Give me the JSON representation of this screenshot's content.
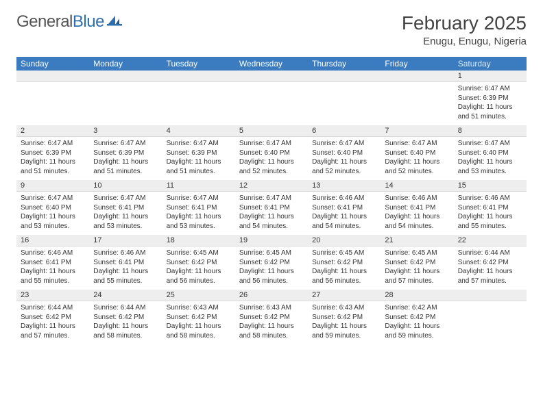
{
  "logo": {
    "text1": "General",
    "text2": "Blue"
  },
  "title": "February 2025",
  "location": "Enugu, Enugu, Nigeria",
  "style": {
    "header_bg": "#3b7bbf",
    "header_fg": "#ffffff",
    "daynum_bg": "#eeeeee",
    "page_bg": "#ffffff",
    "text_color": "#333333",
    "title_color": "#444444",
    "font_family": "Arial",
    "month_title_fontsize": 28,
    "location_fontsize": 15,
    "dayhead_fontsize": 12,
    "daynum_fontsize": 11,
    "cell_fontsize": 10
  },
  "day_names": [
    "Sunday",
    "Monday",
    "Tuesday",
    "Wednesday",
    "Thursday",
    "Friday",
    "Saturday"
  ],
  "weeks": [
    [
      null,
      null,
      null,
      null,
      null,
      null,
      {
        "n": "1",
        "sunrise": "Sunrise: 6:47 AM",
        "sunset": "Sunset: 6:39 PM",
        "daylight": "Daylight: 11 hours and 51 minutes."
      }
    ],
    [
      {
        "n": "2",
        "sunrise": "Sunrise: 6:47 AM",
        "sunset": "Sunset: 6:39 PM",
        "daylight": "Daylight: 11 hours and 51 minutes."
      },
      {
        "n": "3",
        "sunrise": "Sunrise: 6:47 AM",
        "sunset": "Sunset: 6:39 PM",
        "daylight": "Daylight: 11 hours and 51 minutes."
      },
      {
        "n": "4",
        "sunrise": "Sunrise: 6:47 AM",
        "sunset": "Sunset: 6:39 PM",
        "daylight": "Daylight: 11 hours and 51 minutes."
      },
      {
        "n": "5",
        "sunrise": "Sunrise: 6:47 AM",
        "sunset": "Sunset: 6:40 PM",
        "daylight": "Daylight: 11 hours and 52 minutes."
      },
      {
        "n": "6",
        "sunrise": "Sunrise: 6:47 AM",
        "sunset": "Sunset: 6:40 PM",
        "daylight": "Daylight: 11 hours and 52 minutes."
      },
      {
        "n": "7",
        "sunrise": "Sunrise: 6:47 AM",
        "sunset": "Sunset: 6:40 PM",
        "daylight": "Daylight: 11 hours and 52 minutes."
      },
      {
        "n": "8",
        "sunrise": "Sunrise: 6:47 AM",
        "sunset": "Sunset: 6:40 PM",
        "daylight": "Daylight: 11 hours and 53 minutes."
      }
    ],
    [
      {
        "n": "9",
        "sunrise": "Sunrise: 6:47 AM",
        "sunset": "Sunset: 6:40 PM",
        "daylight": "Daylight: 11 hours and 53 minutes."
      },
      {
        "n": "10",
        "sunrise": "Sunrise: 6:47 AM",
        "sunset": "Sunset: 6:41 PM",
        "daylight": "Daylight: 11 hours and 53 minutes."
      },
      {
        "n": "11",
        "sunrise": "Sunrise: 6:47 AM",
        "sunset": "Sunset: 6:41 PM",
        "daylight": "Daylight: 11 hours and 53 minutes."
      },
      {
        "n": "12",
        "sunrise": "Sunrise: 6:47 AM",
        "sunset": "Sunset: 6:41 PM",
        "daylight": "Daylight: 11 hours and 54 minutes."
      },
      {
        "n": "13",
        "sunrise": "Sunrise: 6:46 AM",
        "sunset": "Sunset: 6:41 PM",
        "daylight": "Daylight: 11 hours and 54 minutes."
      },
      {
        "n": "14",
        "sunrise": "Sunrise: 6:46 AM",
        "sunset": "Sunset: 6:41 PM",
        "daylight": "Daylight: 11 hours and 54 minutes."
      },
      {
        "n": "15",
        "sunrise": "Sunrise: 6:46 AM",
        "sunset": "Sunset: 6:41 PM",
        "daylight": "Daylight: 11 hours and 55 minutes."
      }
    ],
    [
      {
        "n": "16",
        "sunrise": "Sunrise: 6:46 AM",
        "sunset": "Sunset: 6:41 PM",
        "daylight": "Daylight: 11 hours and 55 minutes."
      },
      {
        "n": "17",
        "sunrise": "Sunrise: 6:46 AM",
        "sunset": "Sunset: 6:41 PM",
        "daylight": "Daylight: 11 hours and 55 minutes."
      },
      {
        "n": "18",
        "sunrise": "Sunrise: 6:45 AM",
        "sunset": "Sunset: 6:42 PM",
        "daylight": "Daylight: 11 hours and 56 minutes."
      },
      {
        "n": "19",
        "sunrise": "Sunrise: 6:45 AM",
        "sunset": "Sunset: 6:42 PM",
        "daylight": "Daylight: 11 hours and 56 minutes."
      },
      {
        "n": "20",
        "sunrise": "Sunrise: 6:45 AM",
        "sunset": "Sunset: 6:42 PM",
        "daylight": "Daylight: 11 hours and 56 minutes."
      },
      {
        "n": "21",
        "sunrise": "Sunrise: 6:45 AM",
        "sunset": "Sunset: 6:42 PM",
        "daylight": "Daylight: 11 hours and 57 minutes."
      },
      {
        "n": "22",
        "sunrise": "Sunrise: 6:44 AM",
        "sunset": "Sunset: 6:42 PM",
        "daylight": "Daylight: 11 hours and 57 minutes."
      }
    ],
    [
      {
        "n": "23",
        "sunrise": "Sunrise: 6:44 AM",
        "sunset": "Sunset: 6:42 PM",
        "daylight": "Daylight: 11 hours and 57 minutes."
      },
      {
        "n": "24",
        "sunrise": "Sunrise: 6:44 AM",
        "sunset": "Sunset: 6:42 PM",
        "daylight": "Daylight: 11 hours and 58 minutes."
      },
      {
        "n": "25",
        "sunrise": "Sunrise: 6:43 AM",
        "sunset": "Sunset: 6:42 PM",
        "daylight": "Daylight: 11 hours and 58 minutes."
      },
      {
        "n": "26",
        "sunrise": "Sunrise: 6:43 AM",
        "sunset": "Sunset: 6:42 PM",
        "daylight": "Daylight: 11 hours and 58 minutes."
      },
      {
        "n": "27",
        "sunrise": "Sunrise: 6:43 AM",
        "sunset": "Sunset: 6:42 PM",
        "daylight": "Daylight: 11 hours and 59 minutes."
      },
      {
        "n": "28",
        "sunrise": "Sunrise: 6:42 AM",
        "sunset": "Sunset: 6:42 PM",
        "daylight": "Daylight: 11 hours and 59 minutes."
      },
      null
    ]
  ]
}
